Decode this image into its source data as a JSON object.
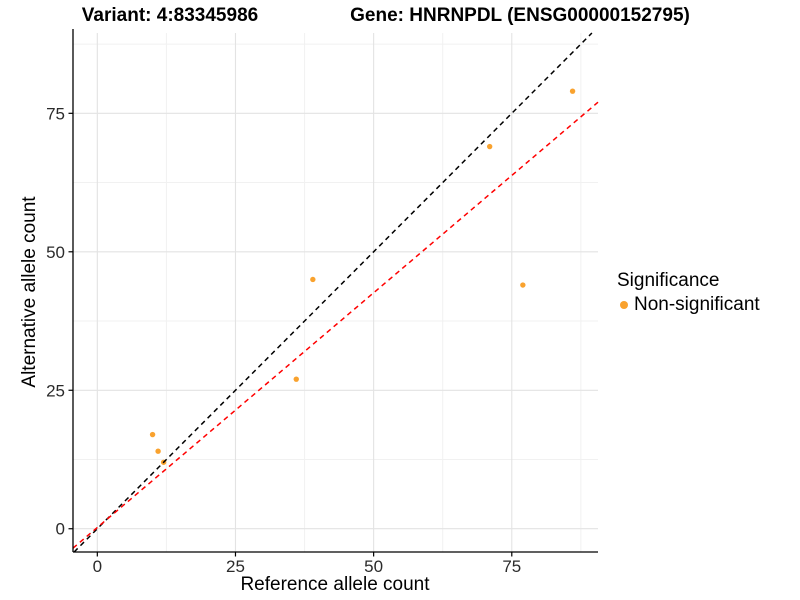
{
  "titles": {
    "variant": "Variant: 4:83345986",
    "gene": "Gene: HNRNPDL (ENSG00000152795)"
  },
  "axes": {
    "x_label": "Reference allele count",
    "y_label": "Alternative allele count"
  },
  "legend": {
    "title": "Significance",
    "position": "right",
    "items": [
      {
        "label": "Non-significant",
        "color": "#F9A22E"
      }
    ]
  },
  "chart_data": {
    "type": "scatter",
    "title": "Variant: 4:83345986  Gene: HNRNPDL (ENSG00000152795)",
    "xlabel": "Reference allele count",
    "ylabel": "Alternative allele count",
    "x_ticks": [
      0,
      25,
      50,
      75
    ],
    "y_ticks": [
      0,
      25,
      50,
      75
    ],
    "x_minor_ticks": [
      12.5,
      37.5,
      62.5,
      87.5
    ],
    "y_minor_ticks": [
      12.5,
      37.5,
      62.5,
      87.5
    ],
    "xlim": [
      -4.4,
      90.6
    ],
    "ylim": [
      -4.2,
      89.5
    ],
    "grid": "major_and_minor",
    "grid_major_color": "#E3E3E3",
    "grid_minor_color": "#F1F1F1",
    "axis_line_color": "#000000",
    "tick_label_color": "#2b2b2b",
    "point_color": "#F9A22E",
    "point_series": "Non-significant",
    "points": [
      [
        10,
        17
      ],
      [
        11,
        14
      ],
      [
        12,
        12
      ],
      [
        36,
        27
      ],
      [
        39,
        45
      ],
      [
        71,
        69
      ],
      [
        77,
        44
      ],
      [
        86,
        79
      ]
    ],
    "lines": [
      {
        "name": "identity",
        "description": "y = x",
        "color": "#000000",
        "style": "dashed",
        "from": [
          -4.2,
          -4.2
        ],
        "to": [
          89.5,
          89.5
        ]
      },
      {
        "name": "fit",
        "description": "y ~ 0.85x",
        "color": "#FF0000",
        "style": "dashed",
        "from": [
          -4.4,
          -3.5
        ],
        "to": [
          90.6,
          77.0
        ]
      }
    ]
  }
}
